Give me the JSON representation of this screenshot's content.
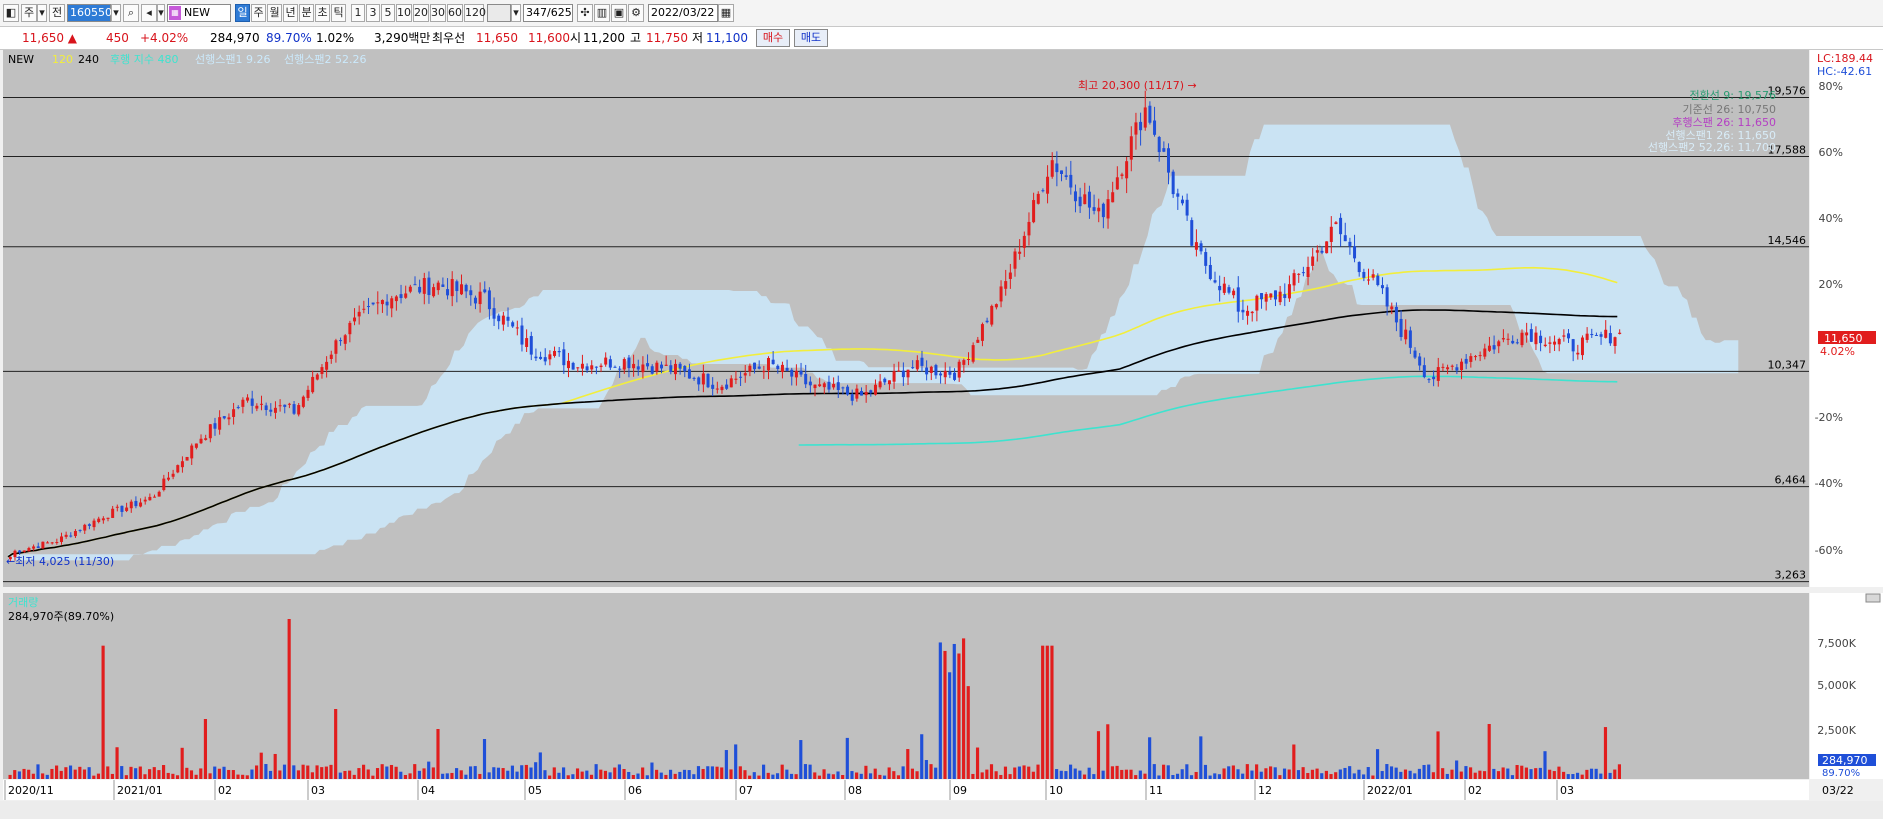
{
  "toolbar": {
    "mode": "주",
    "jeon": "전",
    "code": "160550",
    "name": "NEW",
    "periods": [
      "일",
      "주",
      "월",
      "년",
      "분",
      "초",
      "틱"
    ],
    "numbers": [
      "1",
      "3",
      "5",
      "10",
      "20",
      "30",
      "60",
      "120"
    ],
    "count": "347/625",
    "date": "2022/03/22"
  },
  "info": {
    "price": "11,650 ▲",
    "change": "450",
    "rate": "+4.02%",
    "volume": "284,970",
    "vol_ratio": "89.70%",
    "turnover": "1.02%",
    "amount": "3,290백만",
    "best_label": "최우선",
    "ask": "11,650",
    "bid": "11,600",
    "open_label": "시",
    "open": "11,200",
    "high_label": "고",
    "high": "11,750",
    "low_label": "저",
    "low": "11,100",
    "buy": "매수",
    "sell": "매도"
  },
  "legend": {
    "name": "NEW",
    "ma120": "120",
    "ma240": "240",
    "lagging": "후행 지수 480",
    "span1": "선행스팬1 9.26",
    "span2": "선행스팬2 52.26"
  },
  "ichimoku_labels": [
    "전환선 9: 19,576",
    "기준선 26: 10,750",
    "후행스팬 26: 11,650",
    "선행스팬1 26: 11,650",
    "선행스팬2 52,26: 11,700"
  ],
  "annotations": {
    "high": "최고 20,300 (11/17) →",
    "low": "←최저 4,025 (11/30)"
  },
  "lc": "LC:189.44",
  "hc": "HC:-42.61",
  "price_tag": "11,650",
  "rate_tag": "4.02%",
  "volume_panel": {
    "title": "거래량",
    "value": "284,970주(89.70%)",
    "tag": "284,970",
    "tag2": "89.70%"
  },
  "xaxis": [
    "2020/11",
    "2021/01",
    "02",
    "03",
    "04",
    "05",
    "06",
    "07",
    "08",
    "09",
    "10",
    "11",
    "12",
    "2022/01",
    "02",
    "03"
  ],
  "last_date": "03/22",
  "colors": {
    "up": "#e11d1d",
    "down": "#1f4fd8",
    "cloud": "#cbe9fb",
    "ma120": "#f2ee3c",
    "ma240": "#000000",
    "lag": "#3ee3cf",
    "panel": "#c0c0c0"
  },
  "chart_data": {
    "type": "candlestick",
    "hlines": [
      19576,
      17588,
      14546,
      10347,
      6464,
      3263
    ],
    "price_labels": [
      "19,576",
      "17,588",
      "14,546",
      "10,347",
      "6,464",
      "3,263"
    ],
    "pct_labels": [
      "80%",
      "60%",
      "40%",
      "20%",
      "0%",
      "-20%",
      "-40%",
      "-60%"
    ],
    "volume_labels": [
      "7,500K",
      "5,000K",
      "2,500K"
    ],
    "ohlc_sample": [
      [
        4100,
        4300,
        4025,
        4250
      ],
      [
        4250,
        4700,
        4200,
        4650
      ],
      [
        4650,
        5600,
        4600,
        5500
      ],
      [
        5500,
        6300,
        5300,
        6100
      ],
      [
        6100,
        8300,
        6000,
        8100
      ],
      [
        8100,
        9700,
        7900,
        9400
      ],
      [
        9400,
        10100,
        8800,
        9000
      ],
      [
        9000,
        11800,
        8900,
        11600
      ],
      [
        11600,
        13300,
        11200,
        12900
      ],
      [
        12900,
        13900,
        12200,
        13300
      ],
      [
        13300,
        14600,
        12500,
        12800
      ],
      [
        12800,
        12900,
        10700,
        11100
      ],
      [
        11100,
        11300,
        10300,
        10600
      ],
      [
        10600,
        11000,
        10300,
        10700
      ],
      [
        10700,
        11000,
        10200,
        10400
      ],
      [
        10400,
        10500,
        9500,
        9900
      ],
      [
        9900,
        10800,
        9800,
        10600
      ],
      [
        10600,
        10700,
        9700,
        9800
      ],
      [
        9800,
        9900,
        9200,
        9500
      ],
      [
        9500,
        10600,
        9400,
        10500
      ],
      [
        10500,
        10600,
        10000,
        10300
      ],
      [
        10300,
        13500,
        10200,
        13200
      ],
      [
        13200,
        17800,
        13000,
        17500
      ],
      [
        17500,
        18000,
        15000,
        15500
      ],
      [
        15500,
        20300,
        15400,
        19300
      ],
      [
        19300,
        19500,
        14000,
        14500
      ],
      [
        14500,
        14700,
        12000,
        12400
      ],
      [
        12400,
        13400,
        12000,
        13100
      ],
      [
        13100,
        15500,
        13000,
        15200
      ],
      [
        15200,
        15500,
        12600,
        12800
      ],
      [
        12800,
        12900,
        9800,
        10100
      ],
      [
        10100,
        11200,
        9900,
        11000
      ],
      [
        11000,
        12100,
        10800,
        11700
      ],
      [
        11700,
        11900,
        11000,
        11200
      ],
      [
        11200,
        11750,
        11100,
        11650
      ]
    ]
  }
}
